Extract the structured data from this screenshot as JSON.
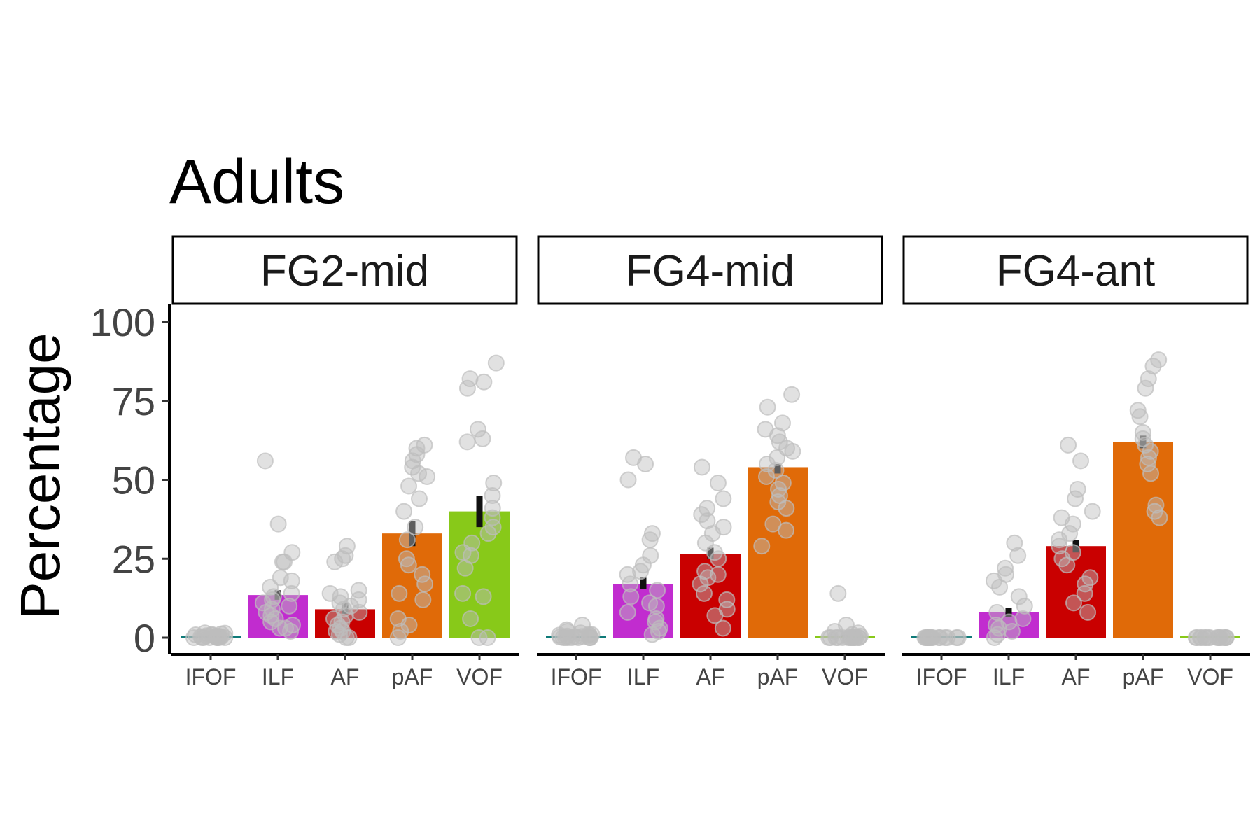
{
  "title": "Adults",
  "ylabel": "Percentage",
  "colors": {
    "IFOF": "#0e7a78",
    "ILF": "#c12ccf",
    "AF": "#c90000",
    "pAF": "#e06a08",
    "VOF": "#88c919",
    "points": "#bdbdbd",
    "errorbar": "#111111"
  },
  "chart_data": {
    "type": "bar",
    "title": "Adults",
    "ylabel": "Percentage",
    "xlabel": "",
    "ylim": [
      0,
      100
    ],
    "yticks": [
      "0",
      "25",
      "50",
      "75",
      "100"
    ],
    "grid": false,
    "legend": "none",
    "categories": [
      "IFOF",
      "ILF",
      "AF",
      "pAF",
      "VOF"
    ],
    "panels": [
      {
        "name": "FG2-mid",
        "values": [
          0.3,
          13.5,
          9,
          33,
          40
        ],
        "errors": [
          [
            0.2,
            0.4
          ],
          [
            12,
            15
          ],
          [
            7.5,
            11
          ],
          [
            29,
            37
          ],
          [
            35,
            45
          ]
        ],
        "points": [
          [
            0,
            0,
            0,
            0.3,
            0.5,
            1,
            1.5,
            0,
            0.2,
            0.8,
            0,
            0.4,
            1.2,
            0,
            0.6,
            0.1,
            0,
            0.9,
            0.3,
            0,
            1.4,
            0.2
          ],
          [
            56,
            36,
            27,
            24,
            24,
            19,
            18,
            14,
            13,
            12,
            10,
            9,
            8,
            7,
            6,
            5,
            4,
            3,
            3,
            2,
            11,
            16
          ],
          [
            29,
            26,
            25,
            24,
            15,
            14,
            13,
            11,
            10,
            8,
            7,
            6,
            5,
            4,
            3,
            2,
            1,
            0,
            0,
            2,
            12,
            9
          ],
          [
            61,
            60,
            58,
            56,
            54,
            52,
            51,
            48,
            44,
            40,
            35,
            31,
            25,
            23,
            20,
            17,
            14,
            12,
            6,
            4,
            2,
            0
          ],
          [
            87,
            82,
            81,
            79,
            66,
            63,
            62,
            49,
            45,
            41,
            38,
            35,
            33,
            30,
            27,
            26,
            22,
            14,
            13,
            6,
            0,
            0
          ]
        ]
      },
      {
        "name": "FG4-mid",
        "values": [
          0.2,
          17,
          26.5,
          54,
          0.5
        ],
        "errors": [
          [
            0.1,
            0.3
          ],
          [
            15.5,
            19
          ],
          [
            25,
            28.5
          ],
          [
            52,
            55
          ],
          [
            0.3,
            0.8
          ]
        ],
        "points": [
          [
            4,
            2,
            1,
            0.5,
            0,
            0,
            0,
            0.3,
            0.8,
            0,
            1.5,
            0,
            0.2,
            0.6,
            0,
            1,
            0,
            0.4,
            0,
            2.5
          ],
          [
            57,
            55,
            50,
            33,
            31,
            26,
            23,
            20,
            17,
            15,
            13,
            11,
            10,
            8,
            6,
            5,
            3,
            2,
            1,
            21
          ],
          [
            54,
            49,
            44,
            41,
            39,
            37,
            35,
            33,
            30,
            27,
            25,
            21,
            20,
            19,
            17,
            14,
            12,
            9,
            7,
            3
          ],
          [
            77,
            73,
            68,
            66,
            64,
            62,
            60,
            59,
            57,
            55,
            53,
            51,
            49,
            47,
            45,
            43,
            41,
            36,
            34,
            29
          ],
          [
            14,
            4,
            2,
            1,
            0,
            0,
            0,
            0,
            0,
            0,
            0,
            0,
            0,
            0,
            0.5,
            0,
            0,
            0,
            0,
            1.5
          ]
        ]
      },
      {
        "name": "FG4-ant",
        "values": [
          0,
          8,
          29,
          62,
          0
        ],
        "errors": [
          [
            0,
            0
          ],
          [
            6.5,
            9.5
          ],
          [
            27,
            31
          ],
          [
            60,
            64
          ],
          [
            0,
            0
          ]
        ],
        "points": [
          [
            0,
            0,
            0,
            0,
            0,
            0,
            0,
            0,
            0,
            0,
            0,
            0,
            0,
            0,
            0,
            0
          ],
          [
            30,
            26,
            22,
            20,
            18,
            16,
            13,
            10,
            8,
            6,
            5,
            4,
            3,
            2,
            1,
            0
          ],
          [
            61,
            56,
            47,
            44,
            40,
            38,
            36,
            33,
            31,
            29,
            27,
            25,
            23,
            19,
            17,
            14,
            11,
            8
          ],
          [
            88,
            86,
            82,
            79,
            72,
            70,
            65,
            63,
            61,
            59,
            57,
            55,
            52,
            42,
            40,
            38
          ],
          [
            0,
            0,
            0,
            0,
            0,
            0,
            0,
            0,
            0,
            0,
            0,
            0,
            0,
            0,
            0,
            0
          ]
        ]
      }
    ]
  }
}
